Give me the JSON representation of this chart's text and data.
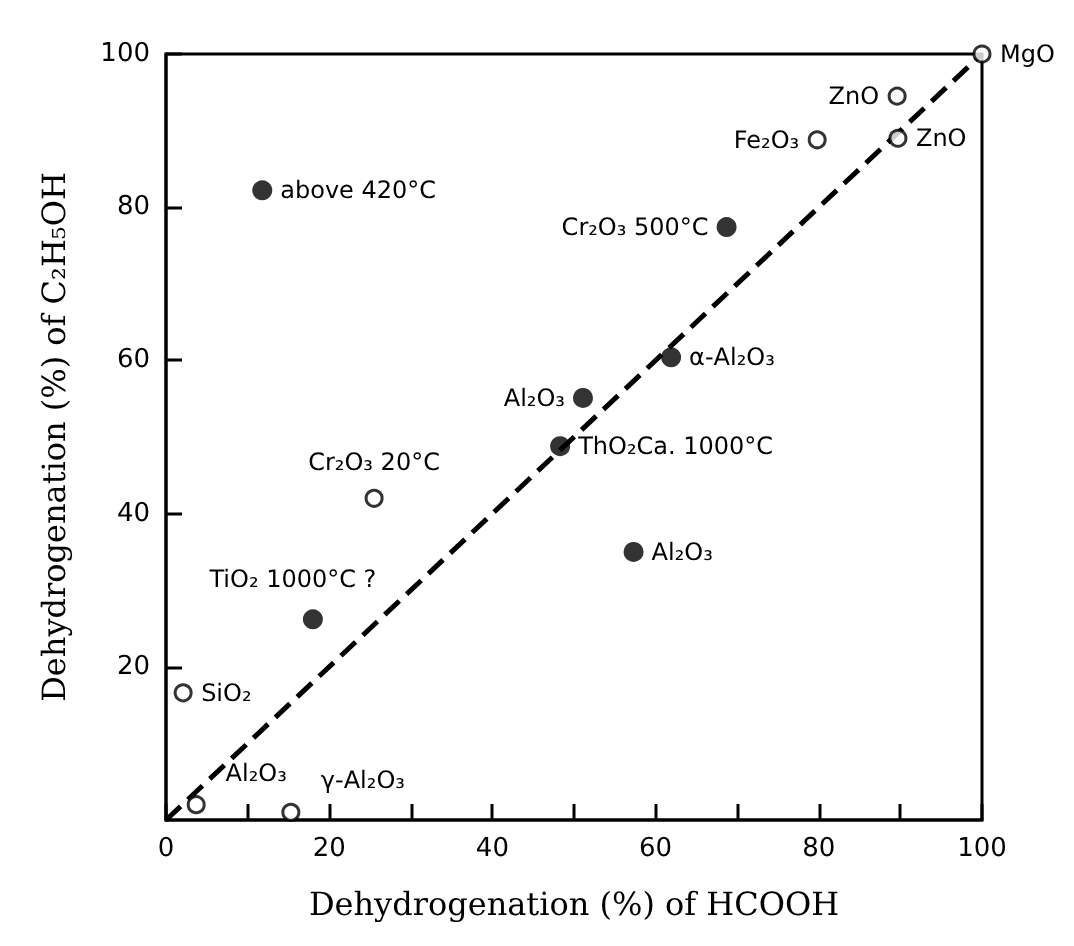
{
  "chart_data": {
    "type": "scatter",
    "xlabel": "Dehydrogenation (%) of HCOOH",
    "ylabel": "Dehydrogenation (%) of C₂H₅OH",
    "xlim": [
      0,
      100
    ],
    "ylim": [
      0,
      100
    ],
    "xticks": [
      0,
      {
        "value": 10,
        "label": null
      },
      20,
      {
        "value": 30,
        "label": null
      },
      40,
      {
        "value": 50,
        "label": null
      },
      60,
      {
        "value": 70,
        "label": null
      },
      80,
      {
        "value": 90,
        "label": null
      },
      100
    ],
    "yticks": [
      20,
      40,
      60,
      80,
      100
    ],
    "grid": false,
    "marker": "circle",
    "series": [
      {
        "color": "#000000",
        "x": [
          11.8,
          68.7,
          61.9,
          51.1,
          48.3,
          57.3,
          18
        ],
        "values": [
          82.2,
          77.4,
          60.4,
          55.1,
          48.8,
          35,
          26.2
        ]
      },
      {
        "color": "#ffffff",
        "x": [
          100,
          89.6,
          89.7,
          79.8,
          25.5,
          2.1,
          3.7,
          15.3
        ],
        "values": [
          100,
          94.5,
          89,
          88.8,
          42,
          16.6,
          2,
          1
        ]
      },
      {
        "type": "line",
        "color": "#000000",
        "line_style": "dashed",
        "marker": "none",
        "x": [
          0,
          100
        ],
        "values": [
          0,
          100
        ]
      }
    ],
    "annotations": [
      {
        "text": "above 420°C",
        "x": 11.8,
        "y": 82.2
      },
      {
        "text": "Cr₂O₃ 500°C",
        "x": 68.7,
        "y": 77.4
      },
      {
        "text": "α-Al₂O₃",
        "x": 61.9,
        "y": 60.4
      },
      {
        "text": "Al₂O₃",
        "x": 51.1,
        "y": 55.1
      },
      {
        "text": "ThO₂Ca. 1000°C",
        "x": 48.3,
        "y": 48.8
      },
      {
        "text": "Al₂O₃",
        "x": 57.3,
        "y": 35
      },
      {
        "text": "TiO₂ 1000°C ?",
        "x": 18,
        "y": 26.2
      },
      {
        "text": "MgO",
        "x": 100,
        "y": 100
      },
      {
        "text": "ZnO",
        "x": 89.6,
        "y": 94.5
      },
      {
        "text": "ZnO",
        "x": 89.7,
        "y": 89
      },
      {
        "text": "Fe₂O₃",
        "x": 79.8,
        "y": 88.8
      },
      {
        "text": "Cr₂O₃ 20°C",
        "x": 25.5,
        "y": 42
      },
      {
        "text": "SiO₂",
        "x": 2.1,
        "y": 16.6
      },
      {
        "text": "Al₂O₃",
        "x": 3.7,
        "y": 2
      },
      {
        "text": "γ-Al₂O₃",
        "x": 15.3,
        "y": 1
      }
    ]
  }
}
